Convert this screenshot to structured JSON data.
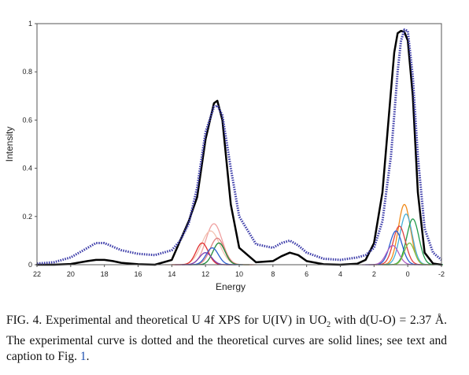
{
  "chart_data": {
    "type": "line",
    "title": "",
    "xlabel": "Energy",
    "ylabel": "Intensity",
    "xlim": [
      22,
      -2
    ],
    "ylim": [
      0,
      1
    ],
    "x_ticks": [
      "22",
      "20",
      "18",
      "16",
      "14",
      "12",
      "10",
      "8",
      "6",
      "4",
      "2",
      "0",
      "-2"
    ],
    "y_ticks": [
      "0",
      "0.2",
      "0.4",
      "0.6",
      "0.8",
      "1"
    ],
    "x": [
      22,
      21,
      20,
      19,
      18.5,
      18,
      17.5,
      17,
      16,
      15,
      14,
      13.5,
      13,
      12.5,
      12,
      11.5,
      11.3,
      11,
      10.5,
      10,
      9,
      8,
      7.5,
      7,
      6.5,
      6,
      5,
      4,
      3,
      2.5,
      2,
      1.5,
      1,
      0.8,
      0.6,
      0.4,
      0.2,
      0,
      -0.3,
      -0.6,
      -1,
      -1.5,
      -2
    ],
    "series": [
      {
        "style": "dotted",
        "color": "#3a3aa8",
        "values": [
          0.005,
          0.01,
          0.03,
          0.07,
          0.09,
          0.09,
          0.075,
          0.06,
          0.045,
          0.04,
          0.06,
          0.1,
          0.17,
          0.32,
          0.55,
          0.655,
          0.66,
          0.62,
          0.4,
          0.2,
          0.085,
          0.07,
          0.09,
          0.1,
          0.08,
          0.05,
          0.025,
          0.02,
          0.03,
          0.04,
          0.07,
          0.18,
          0.45,
          0.62,
          0.8,
          0.93,
          0.975,
          0.97,
          0.78,
          0.45,
          0.15,
          0.05,
          0.02
        ]
      },
      {
        "style": "solid",
        "color": "#000000",
        "values": [
          0.0,
          0.0,
          0.003,
          0.015,
          0.02,
          0.02,
          0.015,
          0.008,
          0.002,
          0.0,
          0.02,
          0.1,
          0.18,
          0.28,
          0.52,
          0.67,
          0.68,
          0.6,
          0.25,
          0.07,
          0.01,
          0.015,
          0.035,
          0.05,
          0.04,
          0.015,
          0.002,
          0.0,
          0.004,
          0.02,
          0.09,
          0.3,
          0.72,
          0.88,
          0.96,
          0.97,
          0.965,
          0.93,
          0.7,
          0.3,
          0.05,
          0.005,
          0.0
        ]
      },
      {
        "style": "solid",
        "color": "#f0a0a0",
        "center": 11.5,
        "height": 0.17,
        "width": 0.8
      },
      {
        "style": "solid",
        "color": "#f2c2b0",
        "center": 11.7,
        "height": 0.14,
        "width": 0.9
      },
      {
        "style": "solid",
        "color": "#e08080",
        "center": 11.3,
        "height": 0.11,
        "width": 0.7
      },
      {
        "style": "solid",
        "color": "#e03030",
        "center": 12.2,
        "height": 0.09,
        "width": 0.6
      },
      {
        "style": "solid",
        "color": "#1f8a3a",
        "center": 11.2,
        "height": 0.09,
        "width": 0.6
      },
      {
        "style": "solid",
        "color": "#2b5fd0",
        "center": 11.6,
        "height": 0.07,
        "width": 0.6
      },
      {
        "style": "solid",
        "color": "#7a40b0",
        "center": 12.0,
        "height": 0.05,
        "width": 0.6
      },
      {
        "style": "solid",
        "color": "#f08a1a",
        "center": 0.2,
        "height": 0.25,
        "width": 0.6
      },
      {
        "style": "solid",
        "color": "#48b0d8",
        "center": 0.1,
        "height": 0.21,
        "width": 0.6
      },
      {
        "style": "solid",
        "color": "#1f9a4a",
        "center": -0.3,
        "height": 0.19,
        "width": 0.6
      },
      {
        "style": "solid",
        "color": "#e04040",
        "center": 0.5,
        "height": 0.16,
        "width": 0.6
      },
      {
        "style": "solid",
        "color": "#2b5fd0",
        "center": 0.7,
        "height": 0.14,
        "width": 0.6
      },
      {
        "style": "solid",
        "color": "#b060c0",
        "center": 0.9,
        "height": 0.08,
        "width": 0.6
      },
      {
        "style": "solid",
        "color": "#80c040",
        "center": -0.1,
        "height": 0.09,
        "width": 0.5
      }
    ]
  },
  "caption": {
    "lead": "FIG. 4. Experimental and theoretical U 4f XPS for U(IV) in UO",
    "sub": "2",
    "mid": " with d(U-O) = 2.37 Å. The experimental curve is dotted and the theoretical curves are solid lines; see text and caption to Fig. ",
    "ref": "1",
    "end": "."
  }
}
